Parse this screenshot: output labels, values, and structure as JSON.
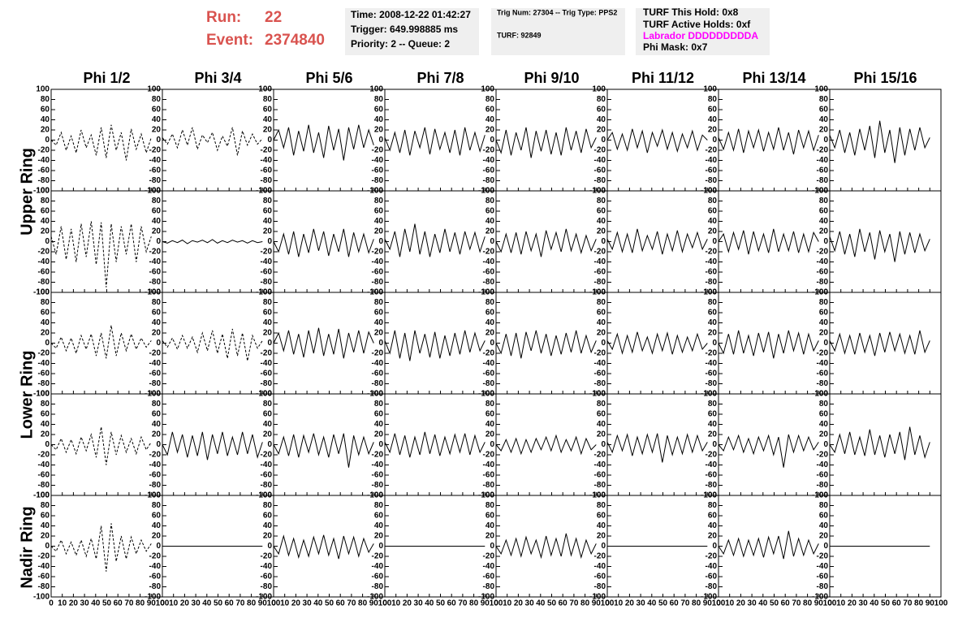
{
  "header": {
    "run_label": "Run:",
    "run": "22",
    "event_label": "Event:",
    "event": "2374840",
    "time": "Time: 2008-12-22 01:42:27",
    "trigger": "Trigger: 649.998885 ms",
    "priority": "Priority: 2 -- Queue: 2",
    "trig_num": "Trig Num: 27304 -- Trig Type: PPS2",
    "turf": "TURF: 92849",
    "turf_hold": "TURF This Hold: 0x8",
    "turf_active": "TURF Active Holds: 0xf",
    "labrador": "Labrador DDDDDDDDDA",
    "phi_mask": "Phi Mask: 0x7"
  },
  "columns": [
    "Phi 1/2",
    "Phi 3/4",
    "Phi 5/6",
    "Phi 7/8",
    "Phi 9/10",
    "Phi 11/12",
    "Phi 13/14",
    "Phi 15/16"
  ],
  "rows": [
    "Upper Ring",
    "Lower Ring",
    "Nadir Ring"
  ],
  "axes": {
    "x": [
      0,
      4.5,
      9,
      13.5,
      18,
      22.5,
      27,
      31.5,
      36,
      40.5,
      45,
      49.5,
      54,
      58.5,
      63,
      67.5,
      72,
      76.5,
      81,
      85.5,
      90
    ],
    "xlim": [
      0,
      100
    ],
    "ylim": [
      -100,
      100
    ],
    "xticks": [
      0,
      10,
      20,
      30,
      40,
      50,
      60,
      70,
      80,
      90,
      100
    ],
    "yticks": [
      -100,
      -80,
      -60,
      -40,
      -20,
      0,
      20,
      40,
      60,
      80,
      100
    ]
  },
  "chart_data": [
    {
      "type": "line",
      "dashed": true,
      "color": "#000000",
      "values": [
        0,
        -10,
        15,
        -20,
        8,
        -25,
        20,
        -15,
        10,
        -30,
        25,
        -35,
        30,
        -20,
        15,
        -40,
        22,
        -18,
        12,
        -25,
        5
      ]
    },
    {
      "type": "line",
      "dashed": true,
      "color": "#000000",
      "values": [
        5,
        -8,
        12,
        -15,
        20,
        -10,
        25,
        -18,
        10,
        -5,
        15,
        -20,
        8,
        -12,
        25,
        -30,
        18,
        -10,
        12,
        -8,
        3
      ]
    },
    {
      "type": "line",
      "dashed": false,
      "color": "#000000",
      "values": [
        0,
        20,
        -15,
        25,
        -30,
        18,
        -22,
        30,
        -25,
        15,
        -35,
        28,
        -20,
        22,
        -40,
        25,
        -18,
        30,
        -15,
        20,
        -10
      ]
    },
    {
      "type": "line",
      "dashed": false,
      "color": "#000000",
      "values": [
        5,
        -20,
        15,
        -25,
        20,
        -30,
        18,
        -15,
        25,
        -28,
        22,
        -18,
        15,
        -25,
        20,
        -30,
        25,
        -20,
        15,
        -22,
        10
      ]
    },
    {
      "type": "line",
      "dashed": false,
      "color": "#000000",
      "values": [
        0,
        -25,
        20,
        -30,
        15,
        -20,
        25,
        -35,
        18,
        -22,
        20,
        -28,
        15,
        -30,
        25,
        -20,
        18,
        -25,
        22,
        -15,
        5
      ]
    },
    {
      "type": "line",
      "dashed": false,
      "color": "#000000",
      "values": [
        0,
        15,
        -18,
        12,
        -20,
        22,
        -15,
        18,
        -25,
        15,
        -12,
        20,
        -18,
        15,
        -22,
        12,
        -15,
        18,
        -20,
        10,
        0
      ]
    },
    {
      "type": "line",
      "dashed": false,
      "color": "#000000",
      "values": [
        5,
        -18,
        15,
        -20,
        22,
        -25,
        18,
        -15,
        20,
        -22,
        15,
        -18,
        25,
        -20,
        15,
        -28,
        20,
        -15,
        18,
        -20,
        10
      ]
    },
    {
      "type": "line",
      "dashed": false,
      "color": "#000000",
      "values": [
        10,
        -15,
        20,
        -25,
        15,
        -30,
        22,
        -20,
        28,
        -35,
        38,
        -25,
        20,
        -45,
        25,
        -30,
        22,
        -20,
        25,
        -15,
        5
      ]
    },
    {
      "type": "line",
      "dashed": true,
      "color": "#000000",
      "values": [
        10,
        -25,
        30,
        -35,
        25,
        -40,
        35,
        -30,
        40,
        -45,
        38,
        -90,
        35,
        -40,
        30,
        -25,
        35,
        -40,
        30,
        -20,
        10
      ]
    },
    {
      "type": "line",
      "dashed": false,
      "color": "#000000",
      "values": [
        0,
        -3,
        2,
        -2,
        3,
        -4,
        2,
        -1,
        3,
        -2,
        4,
        -3,
        2,
        -2,
        3,
        -1,
        2,
        -3,
        2,
        -2,
        0
      ]
    },
    {
      "type": "line",
      "dashed": false,
      "color": "#000000",
      "values": [
        0,
        -20,
        15,
        -25,
        20,
        -30,
        15,
        -22,
        25,
        -18,
        20,
        -28,
        15,
        -20,
        25,
        -30,
        18,
        -20,
        15,
        -22,
        5
      ]
    },
    {
      "type": "line",
      "dashed": false,
      "color": "#000000",
      "values": [
        5,
        -15,
        20,
        -30,
        25,
        -20,
        35,
        -25,
        20,
        -30,
        15,
        -22,
        25,
        -20,
        18,
        -25,
        20,
        -15,
        18,
        -20,
        10
      ]
    },
    {
      "type": "line",
      "dashed": false,
      "color": "#000000",
      "values": [
        0,
        -20,
        15,
        -22,
        18,
        -25,
        20,
        -18,
        15,
        -30,
        22,
        -15,
        18,
        -20,
        25,
        -18,
        15,
        -22,
        12,
        -18,
        5
      ]
    },
    {
      "type": "line",
      "dashed": false,
      "color": "#000000",
      "values": [
        5,
        -15,
        18,
        -20,
        15,
        -22,
        25,
        -18,
        12,
        -15,
        20,
        -25,
        15,
        -18,
        22,
        -20,
        15,
        -12,
        18,
        -15,
        5
      ]
    },
    {
      "type": "line",
      "dashed": false,
      "color": "#000000",
      "values": [
        0,
        15,
        -20,
        18,
        -15,
        22,
        -25,
        20,
        -18,
        15,
        -22,
        25,
        -20,
        15,
        -18,
        20,
        -22,
        15,
        -20,
        18,
        0
      ]
    },
    {
      "type": "line",
      "dashed": false,
      "color": "#000000",
      "values": [
        10,
        -18,
        20,
        -25,
        15,
        -30,
        25,
        -20,
        18,
        -35,
        22,
        -20,
        15,
        -40,
        20,
        -25,
        18,
        -22,
        15,
        -18,
        5
      ]
    },
    {
      "type": "line",
      "dashed": true,
      "color": "#000000",
      "values": [
        0,
        -10,
        12,
        -15,
        10,
        -20,
        15,
        -12,
        18,
        -25,
        20,
        -30,
        35,
        -25,
        20,
        -15,
        18,
        -12,
        10,
        -8,
        5
      ]
    },
    {
      "type": "line",
      "dashed": true,
      "color": "#000000",
      "values": [
        5,
        -8,
        10,
        -12,
        15,
        -10,
        12,
        -18,
        20,
        -15,
        25,
        -20,
        18,
        -30,
        28,
        -25,
        20,
        -35,
        15,
        -10,
        5
      ]
    },
    {
      "type": "line",
      "dashed": false,
      "color": "#000000",
      "values": [
        0,
        20,
        -15,
        25,
        -22,
        18,
        -28,
        25,
        -20,
        30,
        -25,
        18,
        -22,
        28,
        -30,
        20,
        -18,
        25,
        -20,
        22,
        0
      ]
    },
    {
      "type": "line",
      "dashed": false,
      "color": "#000000",
      "values": [
        5,
        -20,
        25,
        -30,
        20,
        -35,
        25,
        -20,
        18,
        -28,
        22,
        -30,
        15,
        -25,
        20,
        -22,
        25,
        -18,
        20,
        -15,
        5
      ]
    },
    {
      "type": "line",
      "dashed": false,
      "color": "#000000",
      "values": [
        0,
        -20,
        18,
        -25,
        20,
        -30,
        22,
        -15,
        25,
        -20,
        18,
        -25,
        15,
        -22,
        20,
        -18,
        25,
        -20,
        15,
        -18,
        5
      ]
    },
    {
      "type": "line",
      "dashed": false,
      "color": "#000000",
      "values": [
        5,
        -12,
        18,
        -20,
        15,
        -18,
        22,
        -15,
        12,
        -20,
        18,
        -15,
        20,
        -22,
        15,
        -18,
        12,
        -15,
        18,
        -12,
        0
      ]
    },
    {
      "type": "line",
      "dashed": false,
      "color": "#000000",
      "values": [
        0,
        -20,
        18,
        -22,
        25,
        -20,
        15,
        -25,
        20,
        -18,
        22,
        -30,
        18,
        -20,
        25,
        -15,
        20,
        -22,
        18,
        -15,
        5
      ]
    },
    {
      "type": "line",
      "dashed": false,
      "color": "#000000",
      "values": [
        5,
        -15,
        18,
        -20,
        15,
        -22,
        20,
        -18,
        15,
        -25,
        20,
        -18,
        22,
        -15,
        18,
        -20,
        15,
        -22,
        25,
        -18,
        5
      ]
    },
    {
      "type": "line",
      "dashed": true,
      "color": "#000000",
      "values": [
        0,
        -10,
        12,
        -15,
        10,
        -18,
        15,
        -12,
        20,
        -25,
        35,
        -40,
        25,
        -20,
        18,
        -15,
        12,
        -18,
        15,
        -10,
        5
      ]
    },
    {
      "type": "line",
      "dashed": false,
      "color": "#000000",
      "values": [
        0,
        -20,
        25,
        -15,
        20,
        -25,
        18,
        -22,
        25,
        -30,
        20,
        -18,
        25,
        -22,
        15,
        -20,
        25,
        -18,
        20,
        -25,
        5
      ]
    },
    {
      "type": "line",
      "dashed": false,
      "color": "#000000",
      "values": [
        0,
        -18,
        15,
        -22,
        20,
        -25,
        18,
        -15,
        22,
        -20,
        15,
        -25,
        20,
        -18,
        22,
        -45,
        18,
        -20,
        15,
        -18,
        5
      ]
    },
    {
      "type": "line",
      "dashed": false,
      "color": "#000000",
      "values": [
        5,
        -15,
        22,
        -20,
        18,
        -25,
        15,
        -20,
        25,
        -18,
        20,
        -22,
        15,
        -18,
        20,
        -15,
        22,
        -20,
        18,
        -15,
        5
      ]
    },
    {
      "type": "line",
      "dashed": false,
      "color": "#000000",
      "values": [
        0,
        -12,
        10,
        -15,
        12,
        -18,
        10,
        -15,
        12,
        -10,
        15,
        -12,
        18,
        -15,
        10,
        -12,
        15,
        -18,
        12,
        -10,
        0
      ]
    },
    {
      "type": "line",
      "dashed": false,
      "color": "#000000",
      "values": [
        5,
        -15,
        18,
        -12,
        20,
        -22,
        15,
        -18,
        20,
        -15,
        22,
        -35,
        18,
        -20,
        15,
        -18,
        20,
        -15,
        18,
        -12,
        5
      ]
    },
    {
      "type": "line",
      "dashed": false,
      "color": "#000000",
      "values": [
        0,
        -12,
        15,
        -10,
        18,
        -15,
        12,
        -18,
        15,
        -12,
        18,
        -20,
        15,
        -45,
        20,
        -15,
        18,
        -12,
        15,
        -10,
        5
      ]
    },
    {
      "type": "line",
      "dashed": false,
      "color": "#000000",
      "values": [
        0,
        -15,
        20,
        -18,
        25,
        -20,
        15,
        -22,
        30,
        -20,
        18,
        -25,
        20,
        -18,
        25,
        -30,
        35,
        -20,
        18,
        -25,
        5
      ]
    },
    {
      "type": "line",
      "dashed": true,
      "color": "#000000",
      "values": [
        0,
        -10,
        12,
        -15,
        8,
        -18,
        12,
        -20,
        15,
        -25,
        40,
        -50,
        45,
        -30,
        20,
        -25,
        18,
        -15,
        12,
        -10,
        5
      ]
    },
    {
      "type": "line",
      "dashed": false,
      "color": "#000000",
      "values": [
        0,
        0,
        0,
        0,
        0,
        0,
        0,
        0,
        0,
        0,
        0,
        0,
        0,
        0,
        0,
        0,
        0,
        0,
        0,
        0,
        0
      ]
    },
    {
      "type": "line",
      "dashed": false,
      "color": "#000000",
      "values": [
        0,
        -15,
        20,
        -18,
        15,
        -22,
        12,
        -20,
        18,
        -15,
        22,
        -18,
        15,
        -25,
        20,
        -15,
        18,
        -20,
        15,
        -12,
        5
      ]
    },
    {
      "type": "line",
      "dashed": false,
      "color": "#000000",
      "values": [
        0,
        0,
        0,
        0,
        0,
        0,
        0,
        0,
        0,
        0,
        0,
        0,
        0,
        0,
        0,
        0,
        0,
        0,
        0,
        0,
        0
      ]
    },
    {
      "type": "line",
      "dashed": false,
      "color": "#000000",
      "values": [
        0,
        -15,
        12,
        -18,
        15,
        -20,
        18,
        -15,
        12,
        -22,
        20,
        -18,
        15,
        -20,
        25,
        -18,
        15,
        -22,
        12,
        -15,
        5
      ]
    },
    {
      "type": "line",
      "dashed": false,
      "color": "#000000",
      "values": [
        0,
        0,
        0,
        0,
        0,
        0,
        0,
        0,
        0,
        0,
        0,
        0,
        0,
        0,
        0,
        0,
        0,
        0,
        0,
        0,
        0
      ]
    },
    {
      "type": "line",
      "dashed": false,
      "color": "#000000",
      "values": [
        0,
        -15,
        12,
        -18,
        15,
        -20,
        12,
        -18,
        15,
        -22,
        18,
        -15,
        20,
        -25,
        30,
        -20,
        15,
        -18,
        12,
        -15,
        5
      ]
    },
    {
      "type": "line",
      "dashed": false,
      "color": "#000000",
      "values": [
        0,
        0,
        0,
        0,
        0,
        0,
        0,
        0,
        0,
        0,
        0,
        0,
        0,
        0,
        0,
        0,
        0,
        0,
        0,
        0,
        0
      ]
    }
  ]
}
